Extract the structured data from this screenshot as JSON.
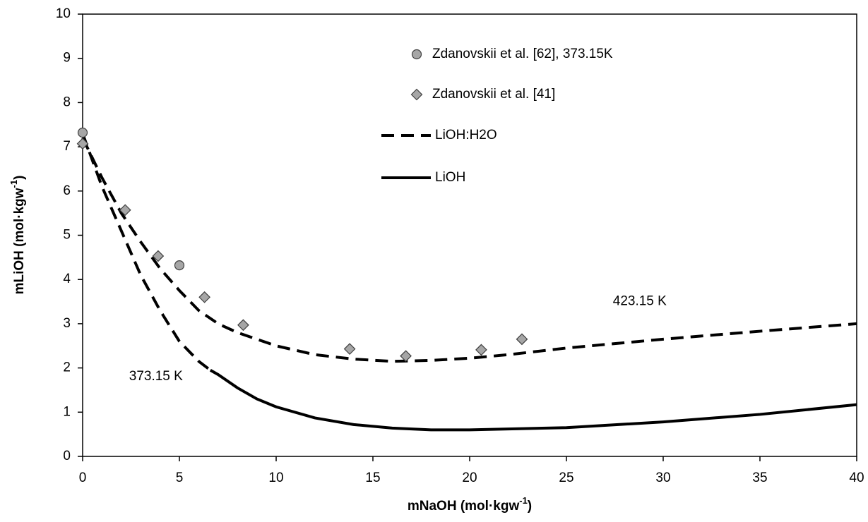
{
  "chart_data": {
    "type": "line",
    "x_label": {
      "text": "mNaOH (mol·kgw",
      "sup": "-1",
      "end": ")"
    },
    "y_label": {
      "text": "mLiOH (mol·kgw",
      "sup": "-1",
      "end": ")"
    },
    "xlim": [
      0,
      40
    ],
    "xticks": [
      0,
      5,
      10,
      15,
      20,
      25,
      30,
      35,
      40
    ],
    "ylim": [
      0,
      10
    ],
    "yticks": [
      0,
      1,
      2,
      3,
      4,
      5,
      6,
      7,
      8,
      9,
      10
    ],
    "annotations": [
      {
        "text": "423.15 K",
        "x": 27.4,
        "y": 3.5
      },
      {
        "text": "373.15 K",
        "x": 2.4,
        "y": 1.8
      }
    ],
    "series": [
      {
        "name": "Zdanovskii et al. [62], 373.15K",
        "marker": "circle",
        "color": "#a6a6a6",
        "x": [
          0,
          5
        ],
        "values": [
          7.32,
          4.32
        ]
      },
      {
        "name": "Zdanovskii et al. [41]",
        "marker": "diamond",
        "color": "#a6a6a6",
        "x": [
          0,
          2.2,
          3.9,
          6.3,
          8.3,
          13.8,
          16.7,
          20.6,
          22.7
        ],
        "values": [
          7.07,
          5.57,
          4.53,
          3.6,
          2.97,
          2.43,
          2.27,
          2.41,
          2.65
        ]
      },
      {
        "name": "LiOH:H2O",
        "line": "dashed",
        "color": "#000000",
        "x": [
          0,
          1,
          2,
          3,
          4,
          5,
          6,
          6.6,
          null,
          0,
          1,
          2,
          3,
          4,
          5,
          6,
          7,
          8,
          10,
          12,
          14,
          16,
          18,
          20,
          22,
          25,
          30,
          35,
          40
        ],
        "values": [
          7.3,
          6.1,
          5.1,
          4.1,
          3.3,
          2.6,
          2.15,
          1.95,
          null,
          7.2,
          6.3,
          5.5,
          4.85,
          4.25,
          3.75,
          3.3,
          3.0,
          2.8,
          2.5,
          2.3,
          2.2,
          2.15,
          2.17,
          2.22,
          2.3,
          2.45,
          2.65,
          2.83,
          3.0
        ]
      },
      {
        "name": "LiOH",
        "line": "solid",
        "color": "#000000",
        "x": [
          6.6,
          7,
          8,
          9,
          10,
          12,
          14,
          16,
          18,
          20,
          25,
          30,
          35,
          40
        ],
        "values": [
          1.95,
          1.85,
          1.55,
          1.3,
          1.12,
          0.87,
          0.72,
          0.64,
          0.6,
          0.6,
          0.65,
          0.78,
          0.95,
          1.17
        ]
      }
    ]
  }
}
